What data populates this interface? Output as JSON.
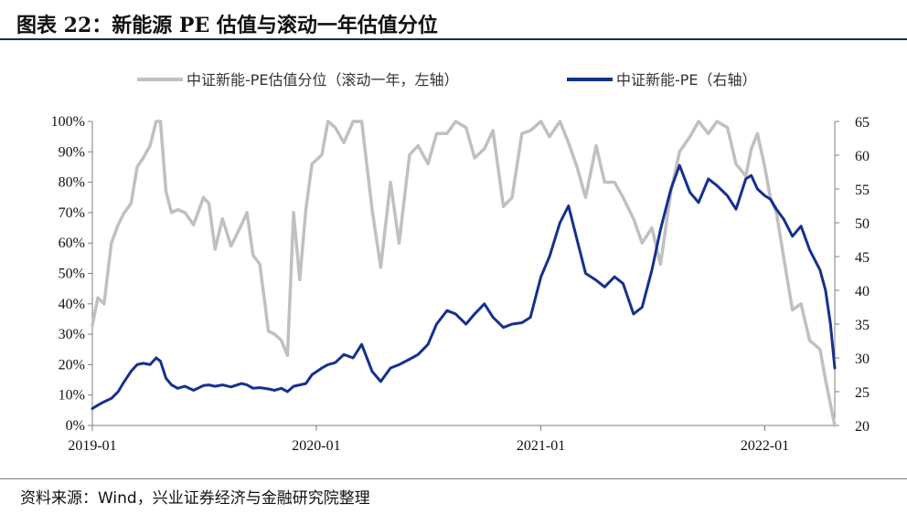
{
  "header": {
    "title": "图表 22：新能源 PE 估值与滚动一年估值分位"
  },
  "footer": {
    "source": "资料来源：Wind，兴业证券经济与金融研究院整理"
  },
  "colors": {
    "percentile": "#c0c0c0",
    "pe": "#15318c",
    "title_rule": "#1b2a5a"
  },
  "chart_data": {
    "type": "line",
    "title": "",
    "legend_position": "top-center",
    "grid": false,
    "x_axis": {
      "ticks": [
        "2019-01",
        "2020-01",
        "2021-01",
        "2022-01"
      ],
      "range": [
        "2019-01-01",
        "2022-04-25"
      ]
    },
    "y_left": {
      "ticks": [
        "0%",
        "10%",
        "20%",
        "30%",
        "40%",
        "50%",
        "60%",
        "70%",
        "80%",
        "90%",
        "100%"
      ],
      "ylim": [
        0,
        100
      ]
    },
    "y_right": {
      "ticks": [
        "20",
        "25",
        "30",
        "35",
        "40",
        "45",
        "50",
        "55",
        "60",
        "65"
      ],
      "ylim": [
        20,
        65
      ]
    },
    "series": [
      {
        "name": "中证新能-PE估值分位（滚动一年，左轴）",
        "axis": "left",
        "x": [
          "2019-01-01",
          "2019-01-10",
          "2019-01-20",
          "2019-02-01",
          "2019-02-12",
          "2019-02-22",
          "2019-03-05",
          "2019-03-15",
          "2019-03-25",
          "2019-04-05",
          "2019-04-15",
          "2019-04-22",
          "2019-05-01",
          "2019-05-10",
          "2019-05-20",
          "2019-06-01",
          "2019-06-15",
          "2019-07-01",
          "2019-07-10",
          "2019-07-20",
          "2019-08-01",
          "2019-08-15",
          "2019-09-01",
          "2019-09-10",
          "2019-09-20",
          "2019-10-01",
          "2019-10-15",
          "2019-10-25",
          "2019-11-05",
          "2019-11-15",
          "2019-11-25",
          "2019-12-05",
          "2019-12-15",
          "2019-12-25",
          "2020-01-10",
          "2020-01-20",
          "2020-02-01",
          "2020-02-15",
          "2020-03-01",
          "2020-03-15",
          "2020-04-01",
          "2020-04-15",
          "2020-05-01",
          "2020-05-15",
          "2020-06-01",
          "2020-06-15",
          "2020-07-01",
          "2020-07-15",
          "2020-08-01",
          "2020-08-15",
          "2020-09-01",
          "2020-09-15",
          "2020-10-01",
          "2020-10-15",
          "2020-11-01",
          "2020-11-15",
          "2020-12-01",
          "2020-12-15",
          "2021-01-01",
          "2021-01-15",
          "2021-02-01",
          "2021-02-15",
          "2021-03-01",
          "2021-03-15",
          "2021-04-01",
          "2021-04-15",
          "2021-05-01",
          "2021-05-15",
          "2021-06-01",
          "2021-06-15",
          "2021-07-01",
          "2021-07-15",
          "2021-08-01",
          "2021-08-15",
          "2021-09-01",
          "2021-09-15",
          "2021-10-01",
          "2021-10-15",
          "2021-11-01",
          "2021-11-15",
          "2021-12-01",
          "2021-12-10",
          "2021-12-20",
          "2022-01-01",
          "2022-01-10",
          "2022-01-20",
          "2022-02-01",
          "2022-02-15",
          "2022-03-01",
          "2022-03-15",
          "2022-04-01",
          "2022-04-10",
          "2022-04-18",
          "2022-04-25"
        ],
        "values": [
          33,
          42,
          40,
          60,
          66,
          70,
          73,
          85,
          88,
          92,
          100,
          100,
          77,
          70,
          71,
          70,
          66,
          75,
          73,
          58,
          68,
          59,
          66,
          70,
          56,
          53,
          31,
          30,
          28,
          23,
          70,
          48,
          71,
          86,
          89,
          100,
          98,
          93,
          100,
          100,
          71,
          52,
          80,
          60,
          89,
          92,
          86,
          96,
          96,
          100,
          98,
          88,
          91,
          97,
          72,
          75,
          96,
          97,
          100,
          95,
          100,
          93,
          85,
          75,
          92,
          80,
          80,
          75,
          68,
          60,
          65,
          53,
          77,
          90,
          95,
          100,
          96,
          100,
          98,
          86,
          82,
          91,
          96,
          85,
          75,
          70,
          55,
          38,
          40,
          28,
          25,
          15,
          7,
          0
        ]
      },
      {
        "name": "中证新能-PE（右轴）",
        "axis": "right",
        "x": [
          "2019-01-01",
          "2019-01-10",
          "2019-01-20",
          "2019-02-01",
          "2019-02-12",
          "2019-02-22",
          "2019-03-05",
          "2019-03-15",
          "2019-03-25",
          "2019-04-05",
          "2019-04-15",
          "2019-04-22",
          "2019-05-01",
          "2019-05-10",
          "2019-05-20",
          "2019-06-01",
          "2019-06-15",
          "2019-07-01",
          "2019-07-10",
          "2019-07-20",
          "2019-08-01",
          "2019-08-15",
          "2019-09-01",
          "2019-09-10",
          "2019-09-20",
          "2019-10-01",
          "2019-10-15",
          "2019-10-25",
          "2019-11-05",
          "2019-11-15",
          "2019-11-25",
          "2019-12-05",
          "2019-12-15",
          "2019-12-25",
          "2020-01-10",
          "2020-01-20",
          "2020-02-01",
          "2020-02-15",
          "2020-03-01",
          "2020-03-15",
          "2020-04-01",
          "2020-04-15",
          "2020-05-01",
          "2020-05-15",
          "2020-06-01",
          "2020-06-15",
          "2020-07-01",
          "2020-07-15",
          "2020-08-01",
          "2020-08-15",
          "2020-09-01",
          "2020-09-15",
          "2020-10-01",
          "2020-10-15",
          "2020-11-01",
          "2020-11-15",
          "2020-12-01",
          "2020-12-15",
          "2021-01-01",
          "2021-01-15",
          "2021-02-01",
          "2021-02-15",
          "2021-03-01",
          "2021-03-15",
          "2021-04-01",
          "2021-04-15",
          "2021-05-01",
          "2021-05-15",
          "2021-06-01",
          "2021-06-15",
          "2021-07-01",
          "2021-07-15",
          "2021-08-01",
          "2021-08-15",
          "2021-09-01",
          "2021-09-15",
          "2021-10-01",
          "2021-10-15",
          "2021-11-01",
          "2021-11-15",
          "2021-12-01",
          "2021-12-10",
          "2021-12-20",
          "2022-01-01",
          "2022-01-10",
          "2022-01-20",
          "2022-02-01",
          "2022-02-15",
          "2022-03-01",
          "2022-03-15",
          "2022-04-01",
          "2022-04-10",
          "2022-04-18",
          "2022-04-25"
        ],
        "values": [
          22.5,
          23.0,
          23.5,
          24.0,
          25.0,
          26.5,
          28.0,
          29.0,
          29.2,
          29.0,
          30.0,
          29.5,
          27.0,
          26.0,
          25.5,
          25.8,
          25.2,
          25.9,
          26.0,
          25.8,
          26.0,
          25.7,
          26.2,
          26.0,
          25.5,
          25.6,
          25.4,
          25.2,
          25.5,
          25.0,
          25.8,
          26.0,
          26.2,
          27.5,
          28.5,
          29.0,
          29.3,
          30.5,
          30.0,
          32.0,
          28.0,
          26.5,
          28.5,
          29.0,
          29.8,
          30.5,
          32.0,
          35.0,
          37.0,
          36.5,
          35.0,
          36.5,
          38.0,
          36.0,
          34.5,
          35.0,
          35.2,
          36.0,
          42.0,
          45.0,
          50.0,
          52.5,
          47.5,
          42.5,
          41.5,
          40.5,
          42.0,
          41.0,
          36.5,
          37.5,
          43.0,
          49.0,
          55.0,
          58.5,
          54.5,
          53.0,
          56.5,
          55.5,
          54.0,
          52.0,
          56.5,
          57.0,
          55.0,
          54.0,
          53.5,
          52.0,
          50.5,
          48.0,
          49.5,
          46.0,
          43.0,
          40.0,
          35.0,
          28.5
        ]
      }
    ]
  }
}
